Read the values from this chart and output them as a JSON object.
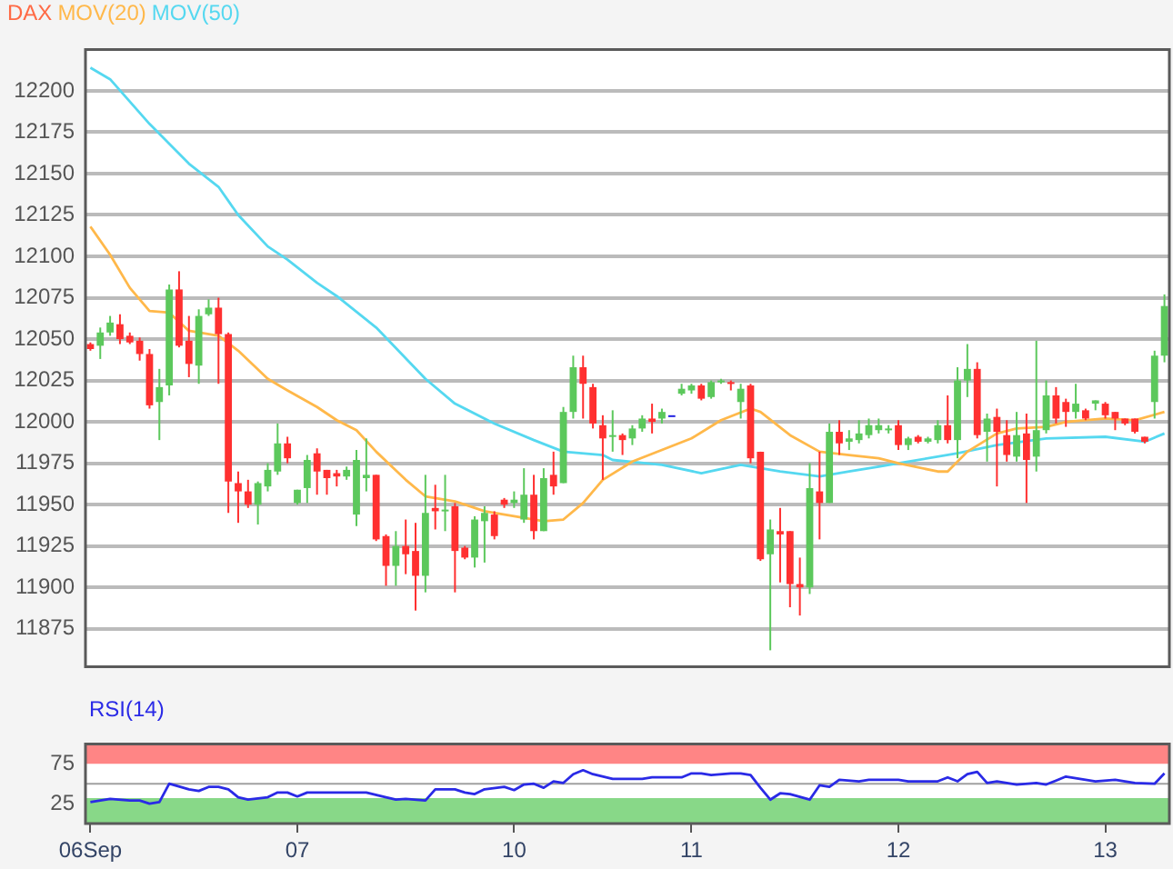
{
  "chart_data": [
    {
      "type": "candlestick",
      "title": "DAX",
      "legend": "top left",
      "grid": "y",
      "tick_labels": "y",
      "marker": "none",
      "categories": [
        null,
        null,
        null,
        null,
        null,
        null,
        null,
        null,
        null,
        null,
        null,
        null,
        null,
        null,
        null,
        null,
        null,
        null,
        null,
        null,
        null,
        null,
        null,
        null,
        null,
        null,
        null,
        null,
        null,
        null,
        null,
        null,
        null,
        null,
        null,
        null,
        null,
        null,
        null,
        null,
        null,
        null,
        null,
        null,
        null,
        null,
        null,
        null,
        null,
        null,
        null,
        null,
        null,
        null,
        null,
        null,
        null,
        null,
        null,
        null,
        null,
        null,
        null,
        null,
        null,
        null,
        null,
        null,
        null,
        null,
        null,
        null,
        null,
        null,
        null,
        null,
        null,
        null,
        null,
        null,
        null,
        null,
        null,
        null,
        null,
        null,
        null,
        null,
        null,
        null,
        null,
        null,
        null,
        null,
        null,
        null,
        null,
        null,
        null,
        null,
        null,
        null,
        null,
        null,
        null,
        null,
        null,
        null,
        null,
        null
      ],
      "ylim": [
        11852,
        12225
      ],
      "yticks": [
        11875,
        11900,
        11925,
        11950,
        11975,
        12000,
        12025,
        12050,
        12075,
        12100,
        12125,
        12150,
        12175,
        12200
      ],
      "ohlc": [
        [
          12047,
          12048,
          12043,
          12044
        ],
        [
          12046,
          12057,
          12038,
          12054
        ],
        [
          12054,
          12064,
          12052,
          12060
        ],
        [
          12059,
          12065,
          12047,
          12050
        ],
        [
          12052,
          12054,
          12047,
          12048
        ],
        [
          12049,
          12051,
          12037,
          12041
        ],
        [
          12041,
          12044,
          12008,
          12010
        ],
        [
          12012,
          12032,
          11989,
          12021
        ],
        [
          12022,
          12083,
          12016,
          12080
        ],
        [
          12080,
          12091,
          12045,
          12046
        ],
        [
          12049,
          12064,
          12027,
          12035
        ],
        [
          12034,
          12068,
          12023,
          12064
        ],
        [
          12065,
          12074,
          12064,
          12069
        ],
        [
          12069,
          12075,
          12023,
          12053
        ],
        [
          12053,
          12054,
          11945,
          11964
        ],
        [
          11963,
          11970,
          11939,
          11958
        ],
        [
          11958,
          11965,
          11948,
          11950
        ],
        [
          11950,
          11964,
          11938,
          11963
        ],
        [
          11961,
          11975,
          11958,
          11971
        ],
        [
          11970,
          11999,
          11968,
          11987
        ],
        [
          11987,
          11991,
          11975,
          11978
        ],
        [
          11951,
          11959,
          11950,
          11959
        ],
        [
          11960,
          11980,
          11951,
          11977
        ],
        [
          11981,
          11984,
          11956,
          11970
        ],
        [
          11971,
          11971,
          11956,
          11966
        ],
        [
          11969,
          11971,
          11961,
          11967
        ],
        [
          11967,
          11973,
          11965,
          11971
        ],
        [
          11944,
          11983,
          11937,
          11977
        ],
        [
          11966,
          11990,
          11958,
          11968
        ],
        [
          11968,
          11968,
          11928,
          11929
        ],
        [
          11931,
          11932,
          11901,
          11913
        ],
        [
          11913,
          11934,
          11901,
          11925
        ],
        [
          11925,
          11941,
          11908,
          11920
        ],
        [
          11922,
          11939,
          11886,
          11907
        ],
        [
          11907,
          11968,
          11897,
          11945
        ],
        [
          11948,
          11962,
          11935,
          11946
        ],
        [
          11946,
          11968,
          11934,
          11947
        ],
        [
          11949,
          11951,
          11897,
          11922
        ],
        [
          11924,
          11925,
          11917,
          11918
        ],
        [
          11918,
          11943,
          11912,
          11941
        ],
        [
          11940,
          11949,
          11915,
          11945
        ],
        [
          11944,
          11946,
          11929,
          11931
        ],
        [
          11953,
          11954,
          11948,
          11950
        ],
        [
          11951,
          11958,
          11948,
          11953
        ],
        [
          11941,
          11972,
          11939,
          11956
        ],
        [
          11956,
          11968,
          11929,
          11934
        ],
        [
          11934,
          11972,
          11934,
          11966
        ],
        [
          11968,
          11982,
          11956,
          11961
        ],
        [
          11963,
          12009,
          11963,
          12006
        ],
        [
          12006,
          12040,
          12002,
          12033
        ],
        [
          12033,
          12040,
          12002,
          12023
        ],
        [
          12021,
          12023,
          11996,
          11999
        ],
        [
          11998,
          12004,
          11965,
          11990
        ],
        [
          11991,
          12007,
          11982,
          11992
        ],
        [
          11992,
          11993,
          11980,
          11989
        ],
        [
          11990,
          11998,
          11986,
          11996
        ],
        [
          11996,
          12004,
          11994,
          12002
        ],
        [
          12002,
          12011,
          11993,
          12000
        ],
        [
          12002,
          12008,
          11999,
          12006
        ],
        [
          12004,
          12004,
          12004,
          12004
        ],
        [
          12017,
          12023,
          12016,
          12020
        ],
        [
          12019,
          12023,
          12017,
          12022
        ],
        [
          12022,
          12023,
          12013,
          12014
        ],
        [
          12015,
          12025,
          12014,
          12024
        ],
        [
          12024,
          12026,
          12023,
          12025
        ],
        [
          12024,
          12025,
          12019,
          12023
        ],
        [
          12012,
          12023,
          12002,
          12020
        ],
        [
          12022,
          12023,
          11975,
          11978
        ],
        [
          11982,
          11982,
          11916,
          11917
        ],
        [
          11920,
          11941,
          11862,
          11935
        ],
        [
          11934,
          11948,
          11903,
          11932
        ],
        [
          11934,
          11934,
          11888,
          11902
        ],
        [
          11902,
          11918,
          11883,
          11900
        ],
        [
          11900,
          11975,
          11896,
          11960
        ],
        [
          11958,
          11982,
          11929,
          11951
        ],
        [
          11951,
          11999,
          11951,
          11994
        ],
        [
          11994,
          12001,
          11980,
          11987
        ],
        [
          11988,
          11995,
          11983,
          11990
        ],
        [
          11989,
          12001,
          11987,
          11993
        ],
        [
          11992,
          12002,
          11990,
          11998
        ],
        [
          11995,
          12002,
          11993,
          11998
        ],
        [
          11995,
          11998,
          11993,
          11996
        ],
        [
          11998,
          12001,
          11983,
          11986
        ],
        [
          11986,
          11991,
          11983,
          11990
        ],
        [
          11991,
          11992,
          11987,
          11988
        ],
        [
          11988,
          11991,
          11987,
          11990
        ],
        [
          11989,
          12001,
          11987,
          11998
        ],
        [
          11998,
          12016,
          11987,
          11989
        ],
        [
          11989,
          12033,
          11978,
          12025
        ],
        [
          12025,
          12047,
          12015,
          12032
        ],
        [
          12032,
          12036,
          11990,
          11992
        ],
        [
          11994,
          12005,
          11976,
          12002
        ],
        [
          12003,
          12008,
          11961,
          11994
        ],
        [
          11992,
          12001,
          11976,
          11980
        ],
        [
          11979,
          12006,
          11976,
          11992
        ],
        [
          11993,
          12005,
          11951,
          11977
        ],
        [
          11979,
          12049,
          11970,
          11995
        ],
        [
          11995,
          12025,
          11993,
          12016
        ],
        [
          12016,
          12021,
          11999,
          12002
        ],
        [
          12012,
          12014,
          11997,
          12006
        ],
        [
          12006,
          12023,
          12002,
          12011
        ],
        [
          12007,
          12008,
          12001,
          12002
        ],
        [
          12011,
          12013,
          12007,
          12013
        ],
        [
          12011,
          12012,
          12002,
          12004
        ],
        [
          12006,
          12006,
          11995,
          12002
        ],
        [
          12002,
          12002,
          11998,
          11999
        ],
        [
          12002,
          12002,
          11993,
          11994
        ],
        [
          11991,
          11991,
          11987,
          11988
        ],
        [
          12012,
          12043,
          12002,
          12040
        ],
        [
          12040,
          12077,
          12036,
          12070
        ]
      ],
      "colors": [
        "#ff3030",
        "#5cc85c",
        "#5cc85c",
        "#ff3030",
        "#ff3030",
        "#ff3030",
        "#ff3030",
        "#5cc85c",
        "#5cc85c",
        "#ff3030",
        "#ff3030",
        "#5cc85c",
        "#5cc85c",
        "#ff3030",
        "#ff3030",
        "#ff3030",
        "#ff3030",
        "#5cc85c",
        "#5cc85c",
        "#5cc85c",
        "#ff3030",
        "#5cc85c",
        "#5cc85c",
        "#ff3030",
        "#ff3030",
        "#ff3030",
        "#5cc85c",
        "#5cc85c",
        "#5cc85c",
        "#ff3030",
        "#ff3030",
        "#5cc85c",
        "#ff3030",
        "#ff3030",
        "#5cc85c",
        "#ff3030",
        "#5cc85c",
        "#ff3030",
        "#ff3030",
        "#5cc85c",
        "#5cc85c",
        "#ff3030",
        "#ff3030",
        "#5cc85c",
        "#5cc85c",
        "#ff3030",
        "#5cc85c",
        "#ff3030",
        "#5cc85c",
        "#5cc85c",
        "#ff3030",
        "#ff3030",
        "#ff3030",
        "#5cc85c",
        "#ff3030",
        "#5cc85c",
        "#5cc85c",
        "#ff3030",
        "#5cc85c",
        "#2020e0",
        "#5cc85c",
        "#5cc85c",
        "#ff3030",
        "#5cc85c",
        "#5cc85c",
        "#ff3030",
        "#5cc85c",
        "#ff3030",
        "#ff3030",
        "#5cc85c",
        "#ff3030",
        "#ff3030",
        "#ff3030",
        "#5cc85c",
        "#ff3030",
        "#5cc85c",
        "#ff3030",
        "#5cc85c",
        "#5cc85c",
        "#5cc85c",
        "#5cc85c",
        "#5cc85c",
        "#ff3030",
        "#5cc85c",
        "#ff3030",
        "#5cc85c",
        "#5cc85c",
        "#ff3030",
        "#5cc85c",
        "#5cc85c",
        "#ff3030",
        "#5cc85c",
        "#ff3030",
        "#ff3030",
        "#5cc85c",
        "#ff3030",
        "#5cc85c",
        "#5cc85c",
        "#ff3030",
        "#ff3030",
        "#5cc85c",
        "#ff3030",
        "#5cc85c",
        "#ff3030",
        "#ff3030",
        "#ff3030",
        "#ff3030",
        "#ff3030",
        "#5cc85c",
        "#5cc85c"
      ],
      "series": [
        {
          "name": "MOV(20)",
          "type": "line",
          "color": "#ffb84a",
          "values": [
            12118,
            null,
            12101,
            null,
            12081,
            null,
            12067,
            null,
            12066,
            null,
            12055,
            null,
            null,
            12052,
            null,
            12043,
            null,
            null,
            12026,
            null,
            12019,
            null,
            null,
            12009,
            null,
            12001,
            null,
            11995,
            null,
            11982,
            null,
            null,
            11965,
            null,
            11955,
            null,
            null,
            11952,
            null,
            null,
            11946,
            null,
            null,
            11943,
            null,
            null,
            11940,
            null,
            11941,
            null,
            11951,
            null,
            11965,
            null,
            null,
            11976,
            null,
            null,
            11983,
            null,
            null,
            11990,
            null,
            null,
            12001,
            null,
            null,
            12008,
            12006,
            null,
            null,
            11992,
            null,
            null,
            11982,
            null,
            null,
            11980,
            null,
            null,
            11978,
            null,
            11975,
            null,
            null,
            null,
            11970,
            11970,
            null,
            11982,
            null,
            null,
            11993,
            null,
            11996,
            null,
            null,
            11997,
            null,
            12000,
            null,
            null,
            null,
            12002,
            null,
            null,
            12001,
            null,
            null,
            12006
          ]
        },
        {
          "name": "MOV(50)",
          "type": "line",
          "color": "#55d8f0",
          "values": [
            12214,
            null,
            12207,
            null,
            null,
            null,
            12180,
            null,
            null,
            null,
            12156,
            null,
            null,
            12142,
            null,
            12125,
            null,
            null,
            12106,
            null,
            12098,
            null,
            null,
            12084,
            null,
            12076,
            null,
            null,
            null,
            12057,
            null,
            null,
            null,
            null,
            12026,
            null,
            null,
            12011,
            null,
            null,
            null,
            11999,
            null,
            null,
            null,
            11989,
            null,
            null,
            11982,
            null,
            null,
            null,
            11980,
            11977,
            null,
            null,
            null,
            null,
            11974,
            null,
            null,
            null,
            11969,
            null,
            null,
            null,
            11974,
            null,
            null,
            null,
            11970,
            null,
            null,
            null,
            11967,
            null,
            null,
            11970,
            null,
            null,
            11973,
            null,
            11975,
            null,
            null,
            null,
            null,
            null,
            11981,
            null,
            null,
            null,
            11986,
            null,
            null,
            null,
            null,
            11990,
            null,
            null,
            null,
            null,
            null,
            11991,
            null,
            null,
            null,
            11988,
            null,
            11993
          ]
        }
      ]
    },
    {
      "type": "line",
      "title": "RSI(14)",
      "legend": false,
      "grid": false,
      "marker": "none",
      "categories": [
        "06Sep",
        null,
        null,
        null,
        null,
        null,
        null,
        null,
        null,
        null,
        null,
        null,
        null,
        null,
        null,
        null,
        null,
        null,
        null,
        null,
        null,
        "07",
        null,
        null,
        null,
        null,
        null,
        null,
        null,
        null,
        null,
        null,
        null,
        null,
        null,
        null,
        null,
        null,
        null,
        null,
        null,
        null,
        null,
        "10",
        null,
        null,
        null,
        null,
        null,
        null,
        null,
        null,
        null,
        null,
        null,
        null,
        null,
        null,
        null,
        null,
        null,
        "11",
        null,
        null,
        null,
        null,
        null,
        null,
        null,
        null,
        null,
        null,
        null,
        null,
        null,
        null,
        null,
        null,
        null,
        null,
        null,
        null,
        "12",
        null,
        null,
        null,
        null,
        null,
        null,
        null,
        null,
        null,
        null,
        null,
        null,
        null,
        null,
        null,
        null,
        null,
        null,
        null,
        null,
        "13",
        null,
        null,
        null,
        null,
        null,
        null
      ],
      "ylim": [
        0,
        100
      ],
      "yticks": [
        25,
        75
      ],
      "bands": [
        {
          "axis": "y",
          "from": 75,
          "to": 100,
          "color": "#ff8585"
        },
        {
          "axis": "y",
          "from": 0,
          "to": 32,
          "color": "#88d888"
        }
      ],
      "ref_lines": [
        {
          "axis": "y",
          "value": 50,
          "color": "#a0a0a0"
        }
      ],
      "series": [
        {
          "color": "#2a2ae6",
          "values": [
            27,
            null,
            31,
            null,
            29,
            29,
            25,
            27,
            50,
            null,
            43,
            41,
            46,
            46,
            43,
            33,
            30,
            null,
            33,
            39,
            39,
            34,
            39,
            null,
            null,
            null,
            null,
            null,
            39,
            null,
            33,
            30,
            31,
            null,
            29,
            43,
            null,
            43,
            39,
            37,
            43,
            null,
            46,
            42,
            49,
            50,
            45,
            53,
            51,
            62,
            67,
            62,
            null,
            56,
            null,
            null,
            56,
            58,
            null,
            null,
            58,
            63,
            63,
            61,
            null,
            63,
            63,
            61,
            45,
            30,
            38,
            37,
            null,
            30,
            48,
            46,
            55,
            null,
            53,
            55,
            null,
            null,
            55,
            53,
            null,
            null,
            53,
            58,
            53,
            62,
            65,
            51,
            53,
            null,
            49,
            null,
            51,
            49,
            54,
            59,
            null,
            55,
            53,
            null,
            55,
            53,
            51,
            null,
            50,
            63
          ]
        }
      ]
    }
  ]
}
